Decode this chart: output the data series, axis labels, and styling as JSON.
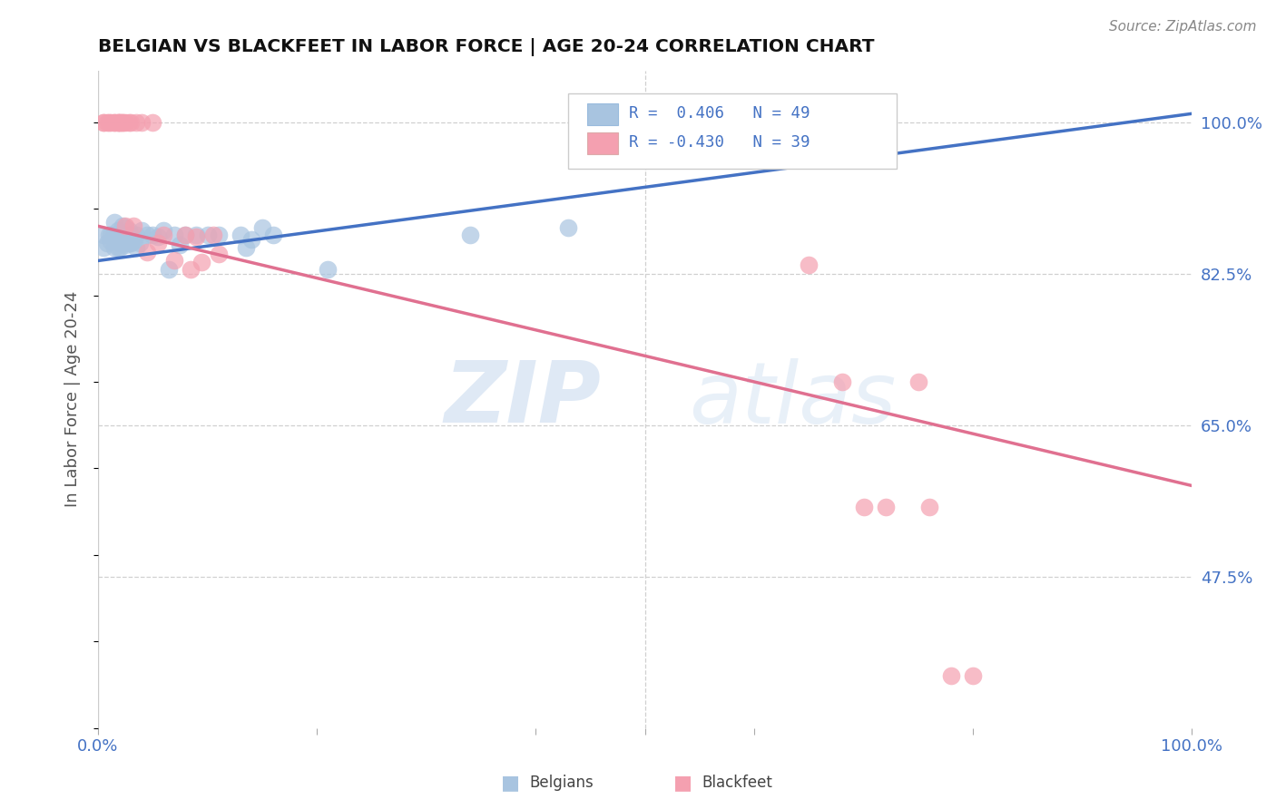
{
  "title": "BELGIAN VS BLACKFEET IN LABOR FORCE | AGE 20-24 CORRELATION CHART",
  "source": "Source: ZipAtlas.com",
  "ylabel": "In Labor Force | Age 20-24",
  "xlim": [
    0.0,
    1.0
  ],
  "ylim": [
    0.3,
    1.06
  ],
  "y_tick_vals_right": [
    1.0,
    0.825,
    0.65,
    0.475
  ],
  "y_tick_labels_right": [
    "100.0%",
    "82.5%",
    "65.0%",
    "47.5%"
  ],
  "belgian_R": "0.406",
  "belgian_N": "49",
  "blackfeet_R": "-0.430",
  "blackfeet_N": "39",
  "belgian_color": "#a8c4e0",
  "blackfeet_color": "#f4a0b0",
  "belgian_line_color": "#4472c4",
  "blackfeet_line_color": "#e07090",
  "watermark_zip": "ZIP",
  "watermark_atlas": "atlas",
  "belgians_x": [
    0.005,
    0.005,
    0.008,
    0.01,
    0.012,
    0.012,
    0.015,
    0.015,
    0.015,
    0.018,
    0.018,
    0.018,
    0.02,
    0.02,
    0.02,
    0.022,
    0.022,
    0.022,
    0.025,
    0.025,
    0.025,
    0.028,
    0.028,
    0.03,
    0.03,
    0.032,
    0.035,
    0.035,
    0.038,
    0.04,
    0.045,
    0.05,
    0.055,
    0.06,
    0.065,
    0.07,
    0.075,
    0.08,
    0.09,
    0.1,
    0.11,
    0.13,
    0.135,
    0.14,
    0.15,
    0.16,
    0.21,
    0.34,
    0.43
  ],
  "belgians_y": [
    0.87,
    0.855,
    0.86,
    0.87,
    0.87,
    0.862,
    0.87,
    0.855,
    0.885,
    0.875,
    0.865,
    0.855,
    0.87,
    0.86,
    0.855,
    0.88,
    0.87,
    0.86,
    0.878,
    0.868,
    0.858,
    0.875,
    0.86,
    0.87,
    0.86,
    0.862,
    0.87,
    0.855,
    0.86,
    0.875,
    0.87,
    0.87,
    0.868,
    0.875,
    0.83,
    0.87,
    0.858,
    0.87,
    0.87,
    0.87,
    0.87,
    0.87,
    0.855,
    0.865,
    0.878,
    0.87,
    0.83,
    0.87,
    0.878
  ],
  "blackfeet_x": [
    0.005,
    0.005,
    0.008,
    0.01,
    0.012,
    0.015,
    0.015,
    0.018,
    0.018,
    0.02,
    0.02,
    0.022,
    0.022,
    0.025,
    0.025,
    0.028,
    0.03,
    0.032,
    0.035,
    0.04,
    0.045,
    0.05,
    0.055,
    0.06,
    0.07,
    0.08,
    0.085,
    0.09,
    0.095,
    0.105,
    0.11,
    0.65,
    0.68,
    0.7,
    0.72,
    0.75,
    0.76,
    0.78,
    0.8
  ],
  "blackfeet_y": [
    1.0,
    1.0,
    1.0,
    1.0,
    1.0,
    1.0,
    1.0,
    1.0,
    1.0,
    1.0,
    1.0,
    1.0,
    1.0,
    0.88,
    1.0,
    1.0,
    1.0,
    0.88,
    1.0,
    1.0,
    0.85,
    1.0,
    0.86,
    0.87,
    0.84,
    0.87,
    0.83,
    0.868,
    0.838,
    0.87,
    0.848,
    0.835,
    0.7,
    0.555,
    0.555,
    0.7,
    0.555,
    0.36,
    0.36
  ],
  "belgian_trend_x": [
    0.0,
    1.0
  ],
  "belgian_trend_y": [
    0.84,
    1.01
  ],
  "blackfeet_trend_x": [
    0.0,
    1.0
  ],
  "blackfeet_trend_y": [
    0.88,
    0.58
  ]
}
